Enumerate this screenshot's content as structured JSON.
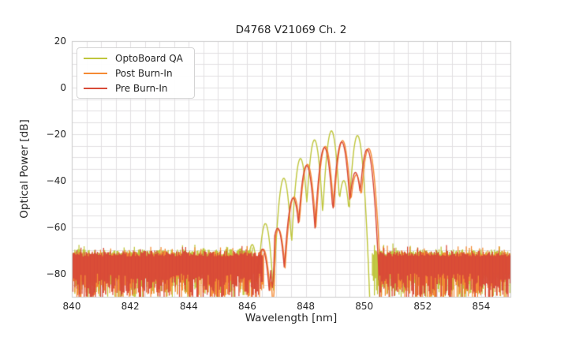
{
  "chart_data": {
    "type": "line",
    "title": "D4768 V21069 Ch. 2",
    "xlabel": "Wavelength [nm]",
    "ylabel": "Optical Power [dB]",
    "xlim": [
      840,
      855
    ],
    "ylim": [
      -90,
      20
    ],
    "xticks": [
      840,
      842,
      844,
      846,
      848,
      850,
      852,
      854
    ],
    "yticks": [
      20,
      0,
      -20,
      -40,
      -60,
      -80
    ],
    "grid": {
      "on": true,
      "minor_x_nm": 0.5,
      "minor_y_db": 5,
      "color": "#e2dfe2",
      "spine_color": "#cccccc"
    },
    "legend_position": "upper left",
    "noise_floor_db": -79,
    "series": [
      {
        "name": "OptoBoard QA",
        "color": "#bfc63c",
        "sigma_nm": 0.05,
        "signal_range_nm": [
          845.5,
          850.4
        ],
        "noise_regions_nm": [
          [
            840,
            846.2
          ],
          [
            850.28,
            855
          ]
        ],
        "mode_peaks_nm_db": [
          [
            845.75,
            -69.5
          ],
          [
            846.17,
            -67.5
          ],
          [
            846.62,
            -58.5
          ],
          [
            847.25,
            -39
          ],
          [
            847.82,
            -30.5
          ],
          [
            848.3,
            -22.5
          ],
          [
            848.88,
            -18.6
          ],
          [
            849.3,
            -40
          ],
          [
            849.77,
            -20.6
          ]
        ],
        "notches_nm_db": [],
        "noise_floor": {
          "top_db": -69.5,
          "top_jitter_db": 2.5,
          "bottom_db": -80,
          "bottom_jitter_db": 11
        }
      },
      {
        "name": "Post Burn-In",
        "color": "#f58a33",
        "sigma_nm": 0.055,
        "signal_range_nm": [
          846.35,
          850.75
        ],
        "noise_regions_nm": [
          [
            840,
            846.57
          ],
          [
            850.58,
            855
          ]
        ],
        "mode_peaks_nm_db": [
          [
            846.55,
            -69.5
          ],
          [
            847.07,
            -61
          ],
          [
            847.6,
            -47
          ],
          [
            848.06,
            -33
          ],
          [
            848.67,
            -25.3
          ],
          [
            849.26,
            -22.8
          ],
          [
            849.73,
            -37.5
          ],
          [
            850.15,
            -26.2
          ]
        ],
        "notches_nm_db": [
          [
            846.88,
            -93
          ]
        ],
        "noise_floor": {
          "top_db": -70.5,
          "top_jitter_db": 2.6,
          "bottom_db": -80,
          "bottom_jitter_db": 12
        }
      },
      {
        "name": "Pre Burn-In",
        "color": "#d84a38",
        "sigma_nm": 0.055,
        "signal_range_nm": [
          846.32,
          850.68
        ],
        "noise_regions_nm": [
          [
            840,
            846.54
          ],
          [
            850.5,
            855
          ]
        ],
        "mode_peaks_nm_db": [
          [
            846.52,
            -69.5
          ],
          [
            847.04,
            -60.5
          ],
          [
            847.57,
            -47.5
          ],
          [
            848.03,
            -33.5
          ],
          [
            848.64,
            -25.8
          ],
          [
            849.23,
            -23.4
          ],
          [
            849.7,
            -36.5
          ],
          [
            850.1,
            -26.6
          ]
        ],
        "notches_nm_db": [
          [
            846.86,
            -86
          ]
        ],
        "noise_floor": {
          "top_db": -70.2,
          "top_jitter_db": 2.4,
          "bottom_db": -80,
          "bottom_jitter_db": 12
        }
      }
    ]
  }
}
